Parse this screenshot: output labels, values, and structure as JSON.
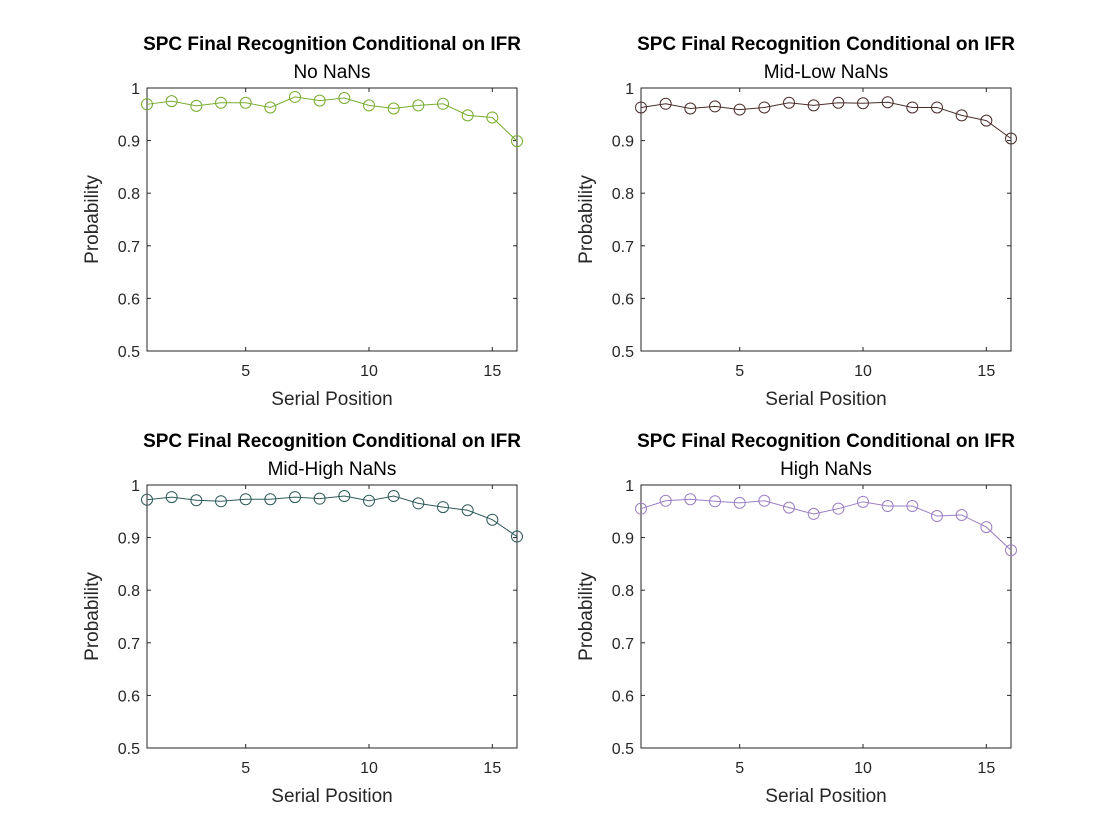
{
  "chart_data": [
    {
      "type": "line",
      "title": "SPC Final Recognition Conditional on IFR",
      "subtitle": "No NaNs",
      "xlabel": "Serial Position",
      "ylabel": "Probability",
      "xlim": [
        1,
        16
      ],
      "ylim": [
        0.5,
        1
      ],
      "xticks": [
        5,
        10,
        15
      ],
      "yticks": [
        0.5,
        0.6,
        0.7,
        0.8,
        0.9,
        1
      ],
      "ytick_labels": [
        "0.5",
        "0.6",
        "0.7",
        "0.8",
        "0.9",
        "1"
      ],
      "grid": false,
      "marker": "circle",
      "color": "#77ac30",
      "series": [
        {
          "x": [
            1,
            2,
            3,
            4,
            5,
            6,
            7,
            8,
            9,
            10,
            11,
            12,
            13,
            14,
            15,
            16
          ],
          "values": [
            0.969,
            0.975,
            0.966,
            0.972,
            0.972,
            0.963,
            0.983,
            0.976,
            0.981,
            0.967,
            0.961,
            0.967,
            0.97,
            0.948,
            0.944,
            0.899
          ]
        }
      ]
    },
    {
      "type": "line",
      "title": "SPC Final Recognition Conditional on IFR",
      "subtitle": "Mid-Low NaNs",
      "xlabel": "Serial Position",
      "ylabel": "Probability",
      "xlim": [
        1,
        16
      ],
      "ylim": [
        0.5,
        1
      ],
      "xticks": [
        5,
        10,
        15
      ],
      "yticks": [
        0.5,
        0.6,
        0.7,
        0.8,
        0.9,
        1
      ],
      "ytick_labels": [
        "0.5",
        "0.6",
        "0.7",
        "0.8",
        "0.9",
        "1"
      ],
      "grid": false,
      "marker": "circle",
      "color": "#4a2e2a",
      "series": [
        {
          "x": [
            1,
            2,
            3,
            4,
            5,
            6,
            7,
            8,
            9,
            10,
            11,
            12,
            13,
            14,
            15,
            16
          ],
          "values": [
            0.963,
            0.97,
            0.961,
            0.965,
            0.959,
            0.963,
            0.972,
            0.967,
            0.972,
            0.971,
            0.973,
            0.963,
            0.963,
            0.948,
            0.938,
            0.904
          ]
        }
      ]
    },
    {
      "type": "line",
      "title": "SPC Final Recognition Conditional on IFR",
      "subtitle": "Mid-High NaNs",
      "xlabel": "Serial Position",
      "ylabel": "Probability",
      "xlim": [
        1,
        16
      ],
      "ylim": [
        0.5,
        1
      ],
      "xticks": [
        5,
        10,
        15
      ],
      "yticks": [
        0.5,
        0.6,
        0.7,
        0.8,
        0.9,
        1
      ],
      "ytick_labels": [
        "0.5",
        "0.6",
        "0.7",
        "0.8",
        "0.9",
        "1"
      ],
      "grid": false,
      "marker": "circle",
      "color": "#2e5a5a",
      "series": [
        {
          "x": [
            1,
            2,
            3,
            4,
            5,
            6,
            7,
            8,
            9,
            10,
            11,
            12,
            13,
            14,
            15,
            16
          ],
          "values": [
            0.972,
            0.977,
            0.971,
            0.969,
            0.973,
            0.973,
            0.977,
            0.974,
            0.979,
            0.97,
            0.979,
            0.965,
            0.958,
            0.952,
            0.934,
            0.902
          ]
        }
      ]
    },
    {
      "type": "line",
      "title": "SPC Final Recognition Conditional on IFR",
      "subtitle": "High NaNs",
      "xlabel": "Serial Position",
      "ylabel": "Probability",
      "xlim": [
        1,
        16
      ],
      "ylim": [
        0.5,
        1
      ],
      "xticks": [
        5,
        10,
        15
      ],
      "yticks": [
        0.5,
        0.6,
        0.7,
        0.8,
        0.9,
        1
      ],
      "ytick_labels": [
        "0.5",
        "0.6",
        "0.7",
        "0.8",
        "0.9",
        "1"
      ],
      "grid": false,
      "marker": "circle",
      "color": "#9b7fc4",
      "series": [
        {
          "x": [
            1,
            2,
            3,
            4,
            5,
            6,
            7,
            8,
            9,
            10,
            11,
            12,
            13,
            14,
            15,
            16
          ],
          "values": [
            0.955,
            0.97,
            0.973,
            0.969,
            0.966,
            0.97,
            0.957,
            0.945,
            0.955,
            0.968,
            0.96,
            0.96,
            0.941,
            0.943,
            0.92,
            0.876
          ]
        }
      ]
    }
  ]
}
